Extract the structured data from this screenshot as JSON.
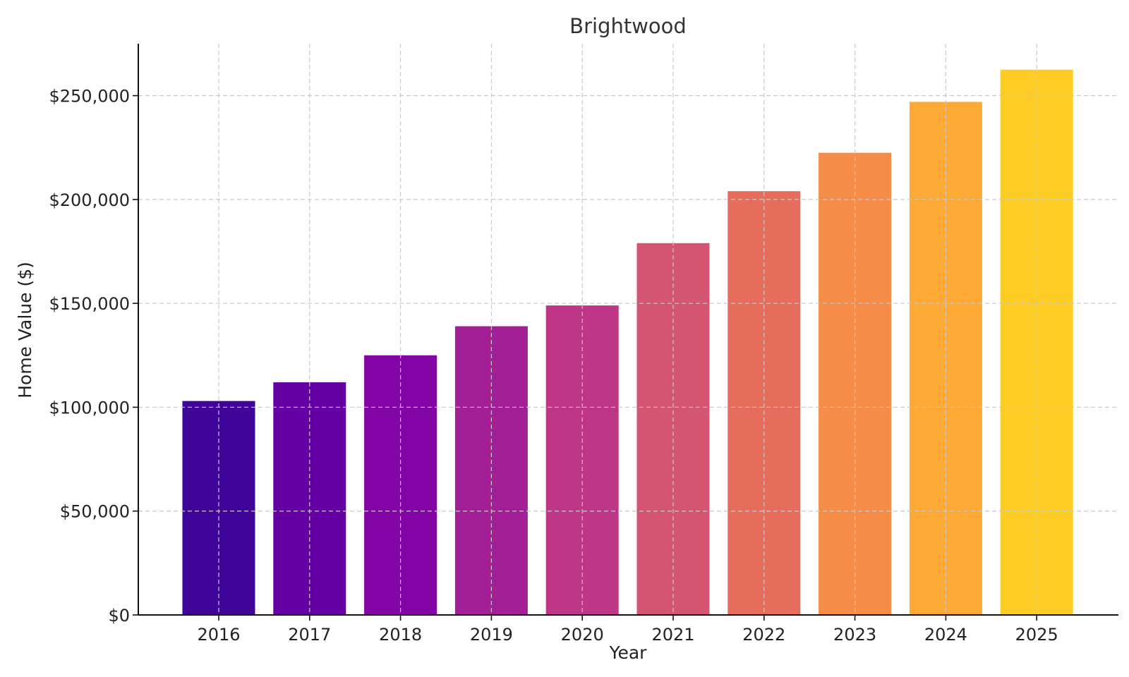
{
  "chart_data": {
    "type": "bar",
    "title": "Brightwood",
    "xlabel": "Year",
    "ylabel": "Home Value ($)",
    "categories": [
      "2016",
      "2017",
      "2018",
      "2019",
      "2020",
      "2021",
      "2022",
      "2023",
      "2024",
      "2025"
    ],
    "values": [
      103000,
      112000,
      125000,
      139000,
      149000,
      179000,
      204000,
      222500,
      247000,
      262500
    ],
    "ylim": [
      0,
      275000
    ],
    "yticks": [
      0,
      50000,
      100000,
      150000,
      200000,
      250000
    ],
    "ytick_labels": [
      "$0",
      "$50,000",
      "$100,000",
      "$150,000",
      "$200,000",
      "$250,000"
    ],
    "colors": [
      "#3f0599",
      "#6500a5",
      "#8304a5",
      "#a21f95",
      "#bd3786",
      "#d35571",
      "#e66d5c",
      "#f58c48",
      "#fca936",
      "#fccc25"
    ],
    "grid": true,
    "legend": "none"
  }
}
